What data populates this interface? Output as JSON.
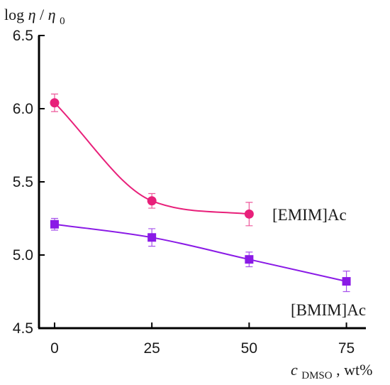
{
  "chart_data": {
    "type": "line",
    "title": "",
    "ylabel": {
      "prefix": "log",
      "symbol": "η",
      "slash": "/",
      "symbol2": "η",
      "sub": "0"
    },
    "xlabel": {
      "symbol": "c",
      "sub": "DMSO",
      "suffix": ", wt%"
    },
    "xlim": [
      -4,
      80
    ],
    "ylim": [
      4.5,
      6.5
    ],
    "x_ticks": [
      0,
      25,
      50,
      75
    ],
    "y_ticks": [
      4.5,
      5.0,
      5.5,
      6.0,
      6.5
    ],
    "x_tick_labels": [
      "0",
      "25",
      "50",
      "75"
    ],
    "y_tick_labels": [
      "4.5",
      "5.0",
      "5.5",
      "6.0",
      "6.5"
    ],
    "grid": false,
    "series": [
      {
        "name": "[EMIM]Ac",
        "color": "#e8207a",
        "marker": "circle",
        "x": [
          0,
          25,
          50
        ],
        "y": [
          6.04,
          5.37,
          5.28
        ],
        "yerr": [
          0.06,
          0.05,
          0.08
        ]
      },
      {
        "name": "[BMIM]Ac",
        "color": "#8a1ae6",
        "marker": "square",
        "x": [
          0,
          25,
          50,
          75
        ],
        "y": [
          5.21,
          5.12,
          4.97,
          4.82
        ],
        "yerr": [
          0.04,
          0.06,
          0.05,
          0.07
        ]
      }
    ]
  }
}
